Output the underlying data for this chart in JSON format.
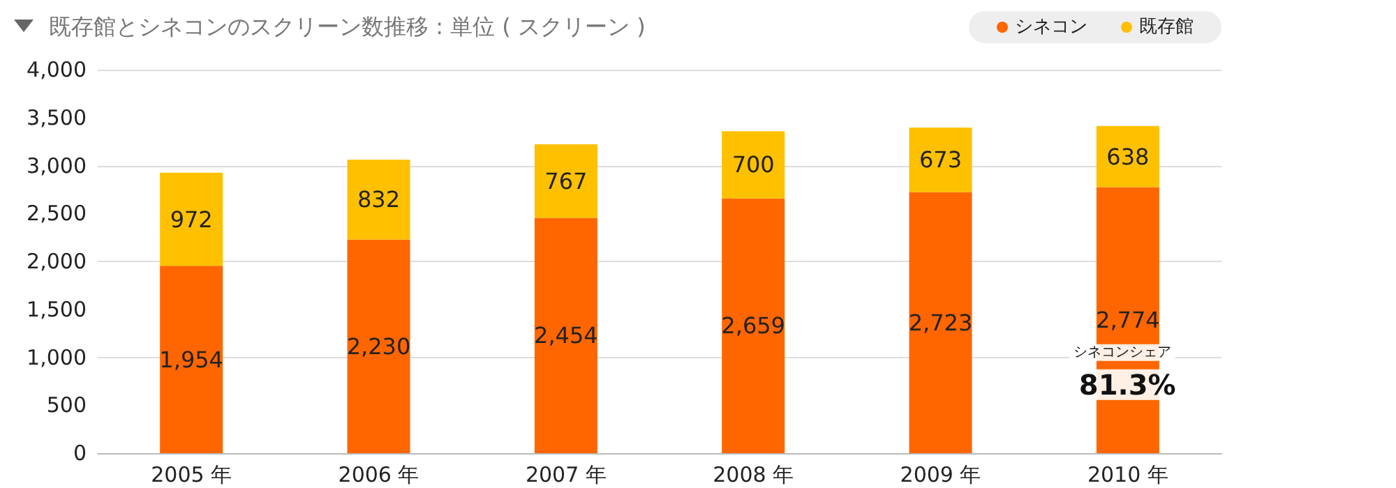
{
  "chart_data": {
    "type": "bar",
    "title": "既存館とシネコンのスクリーン数推移 : 単位 ( スクリーン )",
    "categories": [
      "2005 年",
      "2006 年",
      "2007 年",
      "2008 年",
      "2009 年",
      "2010 年"
    ],
    "stacked": true,
    "series": [
      {
        "name": "シネコン",
        "color": "#ff6600",
        "values": [
          1954,
          2230,
          2454,
          2659,
          2723,
          2774
        ],
        "value_labels": [
          "1,954",
          "2,230",
          "2,454",
          "2,659",
          "2,723",
          "2,774"
        ]
      },
      {
        "name": "既存館",
        "color": "#ffc000",
        "values": [
          972,
          832,
          767,
          700,
          673,
          638
        ],
        "value_labels": [
          "972",
          "832",
          "767",
          "700",
          "673",
          "638"
        ]
      }
    ],
    "ylim": [
      0,
      4000
    ],
    "yticks": [
      0,
      500,
      {
        "value": 1000,
        "label": "1,000"
      },
      {
        "value": 1500,
        "label": "1,500"
      },
      {
        "value": 2000,
        "label": "2,000"
      },
      {
        "value": 2500,
        "label": "2,500"
      },
      {
        "value": 3000,
        "label": "3,000"
      },
      {
        "value": 3500,
        "label": "3,500"
      },
      {
        "value": 4000,
        "label": "4,000"
      }
    ],
    "grid": "y",
    "legend": "top right",
    "annotations": [
      "シネコンシェア",
      "81.3%"
    ]
  }
}
